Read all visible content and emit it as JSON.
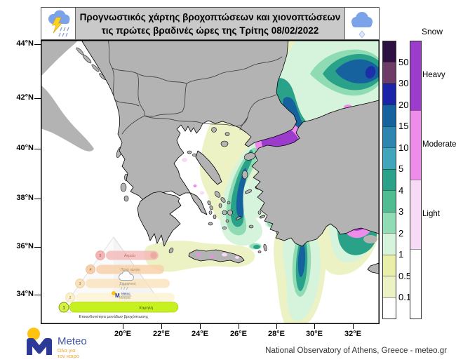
{
  "title": {
    "line1": "Προγνωστικός χάρτης βροχοπτώσεων  και χιονοπτώσεων",
    "line2": "τις πρώτες βραδινές ώρες της Τρίτης 08/02/2022"
  },
  "axes": {
    "lat": [
      "44°N",
      "42°N",
      "40°N",
      "38°N",
      "36°N",
      "34°N"
    ],
    "lon": [
      "20°E",
      "22°E",
      "24°E",
      "26°E",
      "28°E",
      "30°E",
      "32°E"
    ]
  },
  "legend": {
    "rain_values": [
      "50",
      "30",
      "20",
      "15",
      "10",
      "5",
      "4",
      "3",
      "2",
      "1",
      "0.5",
      "0.1"
    ],
    "rain_colors": [
      "#2d1142",
      "#6d3d68",
      "#1b24a8",
      "#15629e",
      "#2e86b0",
      "#41a6bb",
      "#2aa189",
      "#4fbc92",
      "#90dcb5",
      "#d6f3dc",
      "#e9efa9",
      "#edf2c4",
      "#ffffff"
    ],
    "snow_title": "Snow",
    "snow_labels": [
      "Heavy",
      "Moderate",
      "Light"
    ],
    "snow_colors": [
      "#9c3ccc",
      "#ee8ce9",
      "#f7daf5",
      "#ffffff"
    ]
  },
  "pyramid": {
    "levels": [
      {
        "num": "5",
        "label": "Ακραία"
      },
      {
        "num": "4",
        "label": "Πολύ υψηλή"
      },
      {
        "num": "3",
        "label": "Σημαντική"
      },
      {
        "num": "2",
        "label": "Μέτρια"
      },
      {
        "num": "1",
        "label": "Χαμηλή"
      }
    ],
    "caption": "Επικινδυνότητα μονάδων βροχόπτωσης"
  },
  "logo": {
    "name": "Meteo",
    "tagline_line1": "Όλα για",
    "tagline_line2": "τον καιρό"
  },
  "attribution": "National Observatory of Athens, Greece - meteo.gr",
  "map_colors": {
    "land": "#b3b3b3",
    "sea": "#ffffff",
    "snow_heavy": "#9c3ccc",
    "snow_moderate": "#ee8ce9",
    "snow_light": "#f7daf5"
  }
}
